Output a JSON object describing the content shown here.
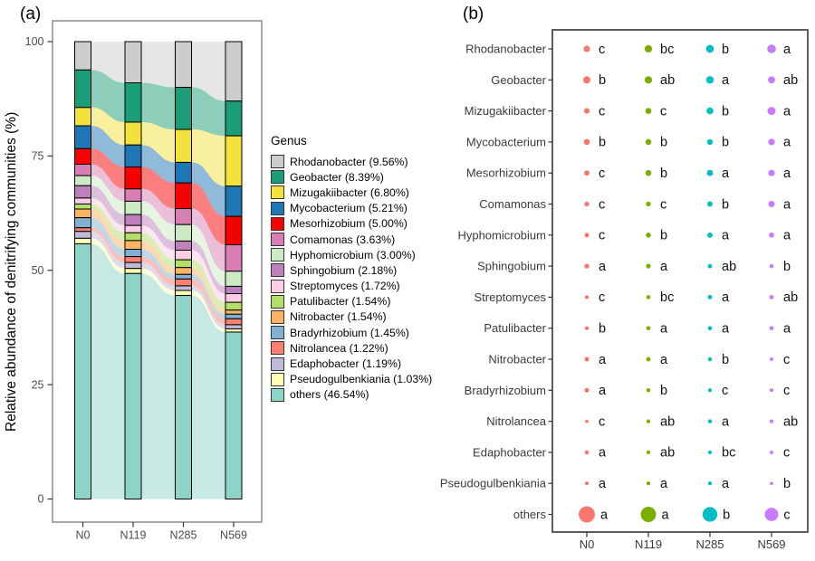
{
  "figure": {
    "panel_a_label": "(a)",
    "panel_b_label": "(b)"
  },
  "chart_data": [
    {
      "panel": "a",
      "type": "bar",
      "subtype": "stacked-bars-with-alluvial-ribbons",
      "ylabel": "Relative abundance of denitrifying communities (%)",
      "legend_title": "Genus",
      "categories": [
        "N0",
        "N119",
        "N285",
        "N569"
      ],
      "yticks": [
        0,
        25,
        50,
        75,
        100
      ],
      "ylim": [
        0,
        100
      ],
      "grid": false,
      "series": [
        {
          "name": "Rhodanobacter",
          "legend_label": "Rhodanobacter (9.56%)",
          "color": "#CDCDCD",
          "values": [
            6.2,
            9.0,
            10.0,
            13.0
          ]
        },
        {
          "name": "Geobacter",
          "legend_label": "Geobacter (8.39%)",
          "color": "#1B9E77",
          "values": [
            8.2,
            8.6,
            9.2,
            7.6
          ]
        },
        {
          "name": "Mizugakiibacter",
          "legend_label": "Mizugakiibacter (6.80%)",
          "color": "#F2E23B",
          "values": [
            4.0,
            5.0,
            7.2,
            11.0
          ]
        },
        {
          "name": "Mycobacterium",
          "legend_label": "Mycobacterium (5.21%)",
          "color": "#1F76B4",
          "values": [
            5.0,
            4.8,
            4.5,
            6.6
          ]
        },
        {
          "name": "Mesorhizobium",
          "legend_label": "Mesorhizobium (5.00%)",
          "color": "#F80000",
          "values": [
            3.4,
            4.8,
            5.6,
            6.2
          ]
        },
        {
          "name": "Comamonas",
          "legend_label": "Comamonas (3.63%)",
          "color": "#D77FB5",
          "values": [
            2.5,
            2.7,
            3.5,
            5.8
          ]
        },
        {
          "name": "Hyphomicrobium",
          "legend_label": "Hyphomicrobium (3.00%)",
          "color": "#CCEBC5",
          "values": [
            2.2,
            2.9,
            3.6,
            3.3
          ]
        },
        {
          "name": "Sphingobium",
          "legend_label": "Sphingobium (2.18%)",
          "color": "#BC80BD",
          "values": [
            2.7,
            2.4,
            2.0,
            1.6
          ]
        },
        {
          "name": "Streptomyces",
          "legend_label": "Streptomyces (1.72%)",
          "color": "#FCCDE5",
          "values": [
            1.3,
            1.6,
            2.1,
            1.9
          ]
        },
        {
          "name": "Patulibacter",
          "legend_label": "Patulibacter (1.54%)",
          "color": "#B3DE69",
          "values": [
            1.1,
            1.7,
            1.7,
            1.7
          ]
        },
        {
          "name": "Nitrobacter",
          "legend_label": "Nitrobacter (1.54%)",
          "color": "#FDB462",
          "values": [
            1.9,
            1.9,
            1.5,
            0.9
          ]
        },
        {
          "name": "Bradyrhizobium",
          "legend_label": "Bradyrhizobium (1.45%)",
          "color": "#80B1D3",
          "values": [
            2.2,
            1.6,
            1.0,
            1.0
          ]
        },
        {
          "name": "Nitrolancea",
          "legend_label": "Nitrolancea (1.22%)",
          "color": "#FB8072",
          "values": [
            0.8,
            1.3,
            1.5,
            1.3
          ]
        },
        {
          "name": "Edaphobacter",
          "legend_label": "Edaphobacter (1.19%)",
          "color": "#BEBADA",
          "values": [
            1.5,
            1.3,
            1.0,
            0.9
          ]
        },
        {
          "name": "Pseudogulbenkiania",
          "legend_label": "Pseudogulbenkiania (1.03%)",
          "color": "#FFFFB3",
          "values": [
            1.2,
            1.1,
            1.1,
            0.7
          ]
        },
        {
          "name": "others",
          "legend_label": "others (46.54%)",
          "color": "#8DD3C7",
          "values": [
            55.8,
            49.3,
            44.5,
            36.5
          ]
        }
      ]
    },
    {
      "panel": "b",
      "type": "scatter",
      "subtype": "dot-size-significance-matrix",
      "categories": [
        "N0",
        "N119",
        "N285",
        "N569"
      ],
      "group_colors": [
        "#F8766D",
        "#7CAE00",
        "#00BFC4",
        "#C77CFF"
      ],
      "grid": false,
      "rows": [
        {
          "name": "Rhodanobacter",
          "letters": [
            "c",
            "bc",
            "b",
            "a"
          ]
        },
        {
          "name": "Geobacter",
          "letters": [
            "b",
            "ab",
            "a",
            "ab"
          ]
        },
        {
          "name": "Mizugakiibacter",
          "letters": [
            "c",
            "c",
            "b",
            "a"
          ]
        },
        {
          "name": "Mycobacterium",
          "letters": [
            "b",
            "b",
            "b",
            "a"
          ]
        },
        {
          "name": "Mesorhizobium",
          "letters": [
            "c",
            "b",
            "a",
            "a"
          ]
        },
        {
          "name": "Comamonas",
          "letters": [
            "c",
            "c",
            "b",
            "a"
          ]
        },
        {
          "name": "Hyphomicrobium",
          "letters": [
            "c",
            "b",
            "a",
            "a"
          ]
        },
        {
          "name": "Sphingobium",
          "letters": [
            "a",
            "a",
            "ab",
            "b"
          ]
        },
        {
          "name": "Streptomyces",
          "letters": [
            "c",
            "bc",
            "a",
            "ab"
          ]
        },
        {
          "name": "Patulibacter",
          "letters": [
            "b",
            "a",
            "a",
            "a"
          ]
        },
        {
          "name": "Nitrobacter",
          "letters": [
            "a",
            "a",
            "b",
            "c"
          ]
        },
        {
          "name": "Bradyrhizobium",
          "letters": [
            "a",
            "b",
            "c",
            "c"
          ]
        },
        {
          "name": "Nitrolancea",
          "letters": [
            "c",
            "ab",
            "a",
            "ab"
          ]
        },
        {
          "name": "Edaphobacter",
          "letters": [
            "a",
            "ab",
            "bc",
            "c"
          ]
        },
        {
          "name": "Pseudogulbenkiania",
          "letters": [
            "a",
            "a",
            "a",
            "b"
          ]
        },
        {
          "name": "others",
          "letters": [
            "a",
            "a",
            "b",
            "c"
          ]
        }
      ]
    }
  ]
}
